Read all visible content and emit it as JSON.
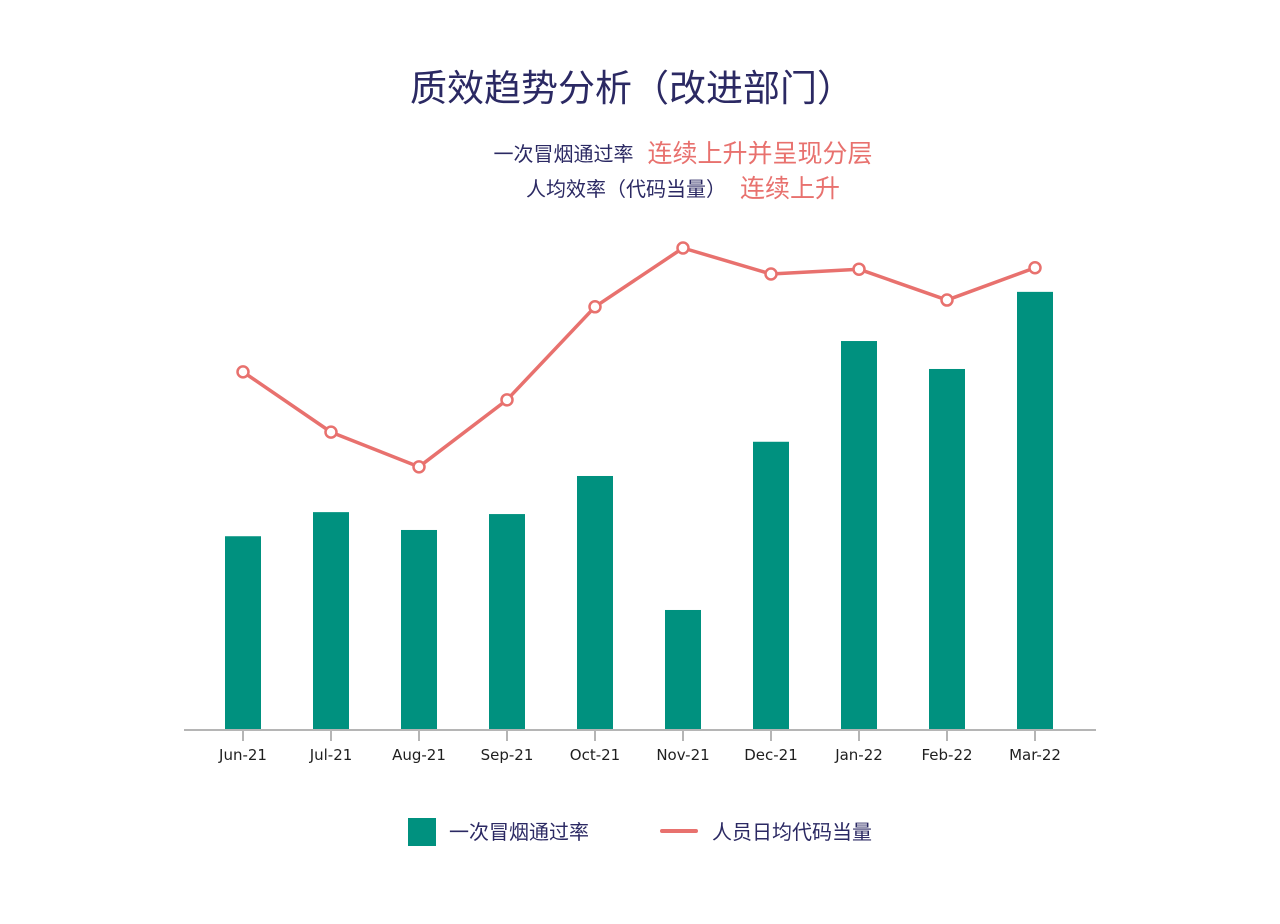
{
  "chart_data": {
    "type": "bar",
    "title": "质效趋势分析（改进部门）",
    "annotations": [
      {
        "label": "一次冒烟通过率",
        "trend": "连续上升并呈现分层"
      },
      {
        "label": "人均效率（代码当量）",
        "trend": "连续上升"
      }
    ],
    "categories": [
      "Jun-21",
      "Jul-21",
      "Aug-21",
      "Sep-21",
      "Oct-21",
      "Nov-21",
      "Dec-21",
      "Jan-22",
      "Feb-22",
      "Mar-22"
    ],
    "series": [
      {
        "name": "一次冒烟通过率",
        "type": "bar",
        "values": [
          40.2,
          45.2,
          41.5,
          44.8,
          52.7,
          24.9,
          59.8,
          80.7,
          74.9,
          90.9
        ]
      },
      {
        "name": "人员日均代码当量",
        "type": "line",
        "values": [
          74.3,
          61.8,
          54.6,
          68.5,
          87.8,
          100,
          94.6,
          95.6,
          89.2,
          95.9
        ]
      }
    ],
    "xlabel": "",
    "ylabel": "",
    "ylim": [
      0,
      100
    ],
    "y_axis_visible": false,
    "grid": false,
    "legend_position": "bottom"
  },
  "colors": {
    "bar": "#00917f",
    "line": "#e8716e",
    "point_fill": "#ffffff",
    "title": "#2b2963",
    "trend_text": "#e8716e",
    "axis": "#b5b5b5"
  }
}
